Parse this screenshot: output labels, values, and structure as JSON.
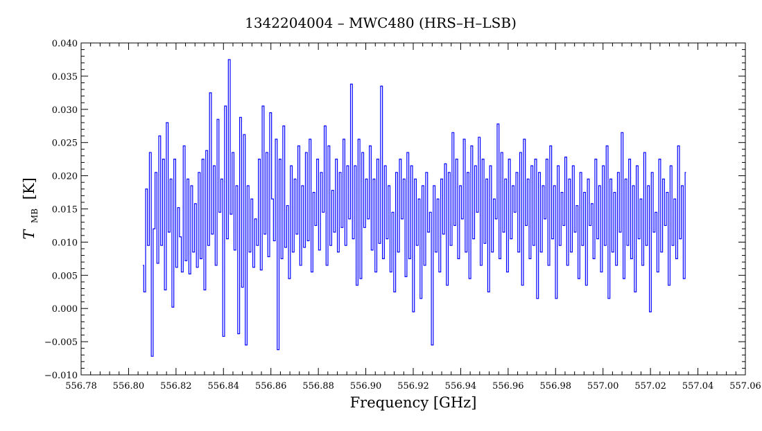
{
  "chart_data": {
    "type": "line",
    "title": "1342204004 – MWC480 (HRS–H–LSB)",
    "xlabel": "Frequency [GHz]",
    "ylabel_main": "T",
    "ylabel_sub": "MB",
    "ylabel_unit": "[K]",
    "xlim": [
      556.78,
      557.06
    ],
    "ylim": [
      -0.01,
      0.04
    ],
    "x_ticks": [
      556.78,
      556.8,
      556.82,
      556.84,
      556.86,
      556.88,
      556.9,
      556.92,
      556.94,
      556.96,
      556.98,
      557.0,
      557.02,
      557.04,
      557.06
    ],
    "x_tick_labels": [
      "556.78",
      "556.80",
      "556.82",
      "556.84",
      "556.86",
      "556.88",
      "556.90",
      "556.92",
      "556.94",
      "556.96",
      "556.98",
      "557.00",
      "557.02",
      "557.04",
      "557.06"
    ],
    "y_ticks": [
      -0.01,
      -0.005,
      0.0,
      0.005,
      0.01,
      0.015,
      0.02,
      0.025,
      0.03,
      0.035,
      0.04
    ],
    "y_tick_labels": [
      "−0.010",
      "−0.005",
      "0.000",
      "0.005",
      "0.010",
      "0.015",
      "0.020",
      "0.025",
      "0.030",
      "0.035",
      "0.040"
    ],
    "grid": false,
    "series_color": "#0000ff",
    "series": [
      {
        "x_start": 556.806,
        "x_end": 557.035,
        "values": [
          0.0065,
          0.0025,
          0.018,
          0.0095,
          0.0235,
          -0.0072,
          0.012,
          0.0205,
          0.0068,
          0.026,
          0.0095,
          0.0225,
          0.0028,
          0.028,
          0.0115,
          0.0195,
          0.0002,
          0.0225,
          0.0062,
          0.0152,
          0.0108,
          0.0055,
          0.0245,
          0.0072,
          0.0195,
          0.0052,
          0.0185,
          0.0085,
          0.0158,
          0.0062,
          0.0205,
          0.0075,
          0.0225,
          0.0028,
          0.0238,
          0.0095,
          0.0325,
          0.0112,
          0.0215,
          0.0065,
          0.0285,
          0.0145,
          0.0195,
          -0.0042,
          0.0305,
          0.0105,
          0.0375,
          0.0142,
          0.0235,
          0.0088,
          0.0185,
          -0.0038,
          0.0288,
          0.0032,
          0.0262,
          -0.0055,
          0.0185,
          0.0085,
          0.0165,
          0.0062,
          0.0135,
          0.0095,
          0.0225,
          0.0058,
          0.0305,
          0.0112,
          0.0235,
          0.0078,
          0.0295,
          0.0165,
          0.0102,
          0.0255,
          -0.0062,
          0.0225,
          0.0075,
          0.0275,
          0.0092,
          0.0155,
          0.0045,
          0.0215,
          0.0085,
          0.0195,
          0.0112,
          0.0245,
          0.0065,
          0.0185,
          0.0092,
          0.0235,
          0.0102,
          0.0255,
          0.0055,
          0.0175,
          0.0125,
          0.0225,
          0.0088,
          0.0205,
          0.0145,
          0.0275,
          0.0065,
          0.0245,
          0.0095,
          0.0178,
          0.0115,
          0.0225,
          0.0085,
          0.0205,
          0.0122,
          0.0255,
          0.0095,
          0.0215,
          0.0135,
          0.0338,
          0.0105,
          0.0215,
          0.0035,
          0.0255,
          0.0045,
          0.0235,
          0.0122,
          0.0195,
          0.0135,
          0.0245,
          0.0088,
          0.0195,
          0.0055,
          0.0225,
          0.0098,
          0.0335,
          0.0075,
          0.0215,
          0.0105,
          0.0185,
          0.0055,
          0.0145,
          0.0025,
          0.0205,
          0.0085,
          0.0225,
          0.0135,
          0.0195,
          0.0048,
          0.0235,
          0.0075,
          0.0215,
          -0.0005,
          0.0195,
          0.0095,
          0.0165,
          0.0015,
          0.0185,
          0.0065,
          0.0205,
          0.0115,
          0.0145,
          -0.0055,
          0.0185,
          0.0085,
          0.0165,
          0.0055,
          0.0195,
          0.0112,
          0.0218,
          0.0035,
          0.0205,
          0.0095,
          0.0265,
          0.0125,
          0.0225,
          0.0075,
          0.0185,
          0.0135,
          0.0255,
          0.0085,
          0.0205,
          0.0045,
          0.0245,
          0.0105,
          0.0215,
          0.0145,
          0.0258,
          0.0065,
          0.0225,
          0.0098,
          0.0195,
          0.0025,
          0.0215,
          0.0085,
          0.0165,
          0.0135,
          0.0278,
          0.0075,
          0.0235,
          0.0115,
          0.0195,
          0.0055,
          0.0225,
          0.0105,
          0.0185,
          0.0145,
          0.0205,
          0.0085,
          0.0235,
          0.0035,
          0.0255,
          0.0125,
          0.0195,
          0.0075,
          0.0215,
          0.0095,
          0.0225,
          0.0015,
          0.0205,
          0.0085,
          0.0185,
          0.0135,
          0.0225,
          0.0065,
          0.0245,
          0.0105,
          0.0185,
          0.0015,
          0.0215,
          0.0095,
          0.0175,
          0.0125,
          0.0228,
          0.0065,
          0.0195,
          0.0085,
          0.0215,
          0.0115,
          0.0155,
          0.0045,
          0.0205,
          0.0095,
          0.0175,
          0.0035,
          0.0195,
          0.0125,
          0.0158,
          0.0075,
          0.0225,
          0.0105,
          0.0185,
          0.0055,
          0.0215,
          0.0095,
          0.0245,
          0.0015,
          0.0195,
          0.0085,
          0.0175,
          0.0065,
          0.0205,
          0.0115,
          0.0265,
          0.0045,
          0.0195,
          0.0095,
          0.0225,
          0.0075,
          0.0185,
          0.0025,
          0.0215,
          0.0105,
          0.0165,
          0.0065,
          0.0235,
          0.0095,
          0.0185,
          -0.0005,
          0.0205,
          0.0115,
          0.0145,
          0.0055,
          0.0225,
          0.0085,
          0.0195,
          0.0125,
          0.0175,
          0.0035,
          0.0215,
          0.0095,
          0.0165,
          0.0075,
          0.0245,
          0.0105,
          0.0185,
          0.0045,
          0.0205
        ]
      }
    ]
  }
}
